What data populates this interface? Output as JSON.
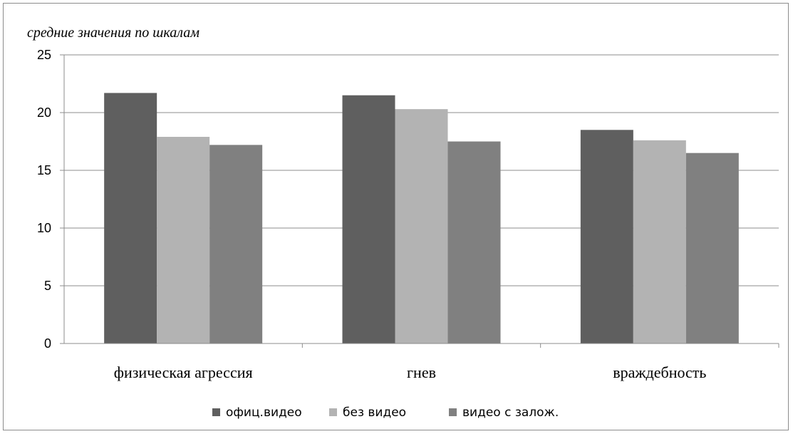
{
  "chart_data": {
    "type": "bar",
    "ylabel": "средние значения по шкалам",
    "xlabel": "",
    "categories": [
      "физическая агрессия",
      "гнев",
      "враждебность"
    ],
    "ylim": [
      0,
      25
    ],
    "yticks": [
      0,
      5,
      10,
      15,
      20,
      25
    ],
    "grid": true,
    "legend_position": "bottom",
    "series": [
      {
        "name": "офиц.видео",
        "color": "#5f5f5f",
        "values": [
          21.7,
          21.5,
          18.5
        ]
      },
      {
        "name": "без видео",
        "color": "#b3b3b3",
        "values": [
          17.9,
          20.3,
          17.6
        ]
      },
      {
        "name": "видео с залож.",
        "color": "#808080",
        "values": [
          17.2,
          17.5,
          16.5
        ]
      }
    ]
  }
}
